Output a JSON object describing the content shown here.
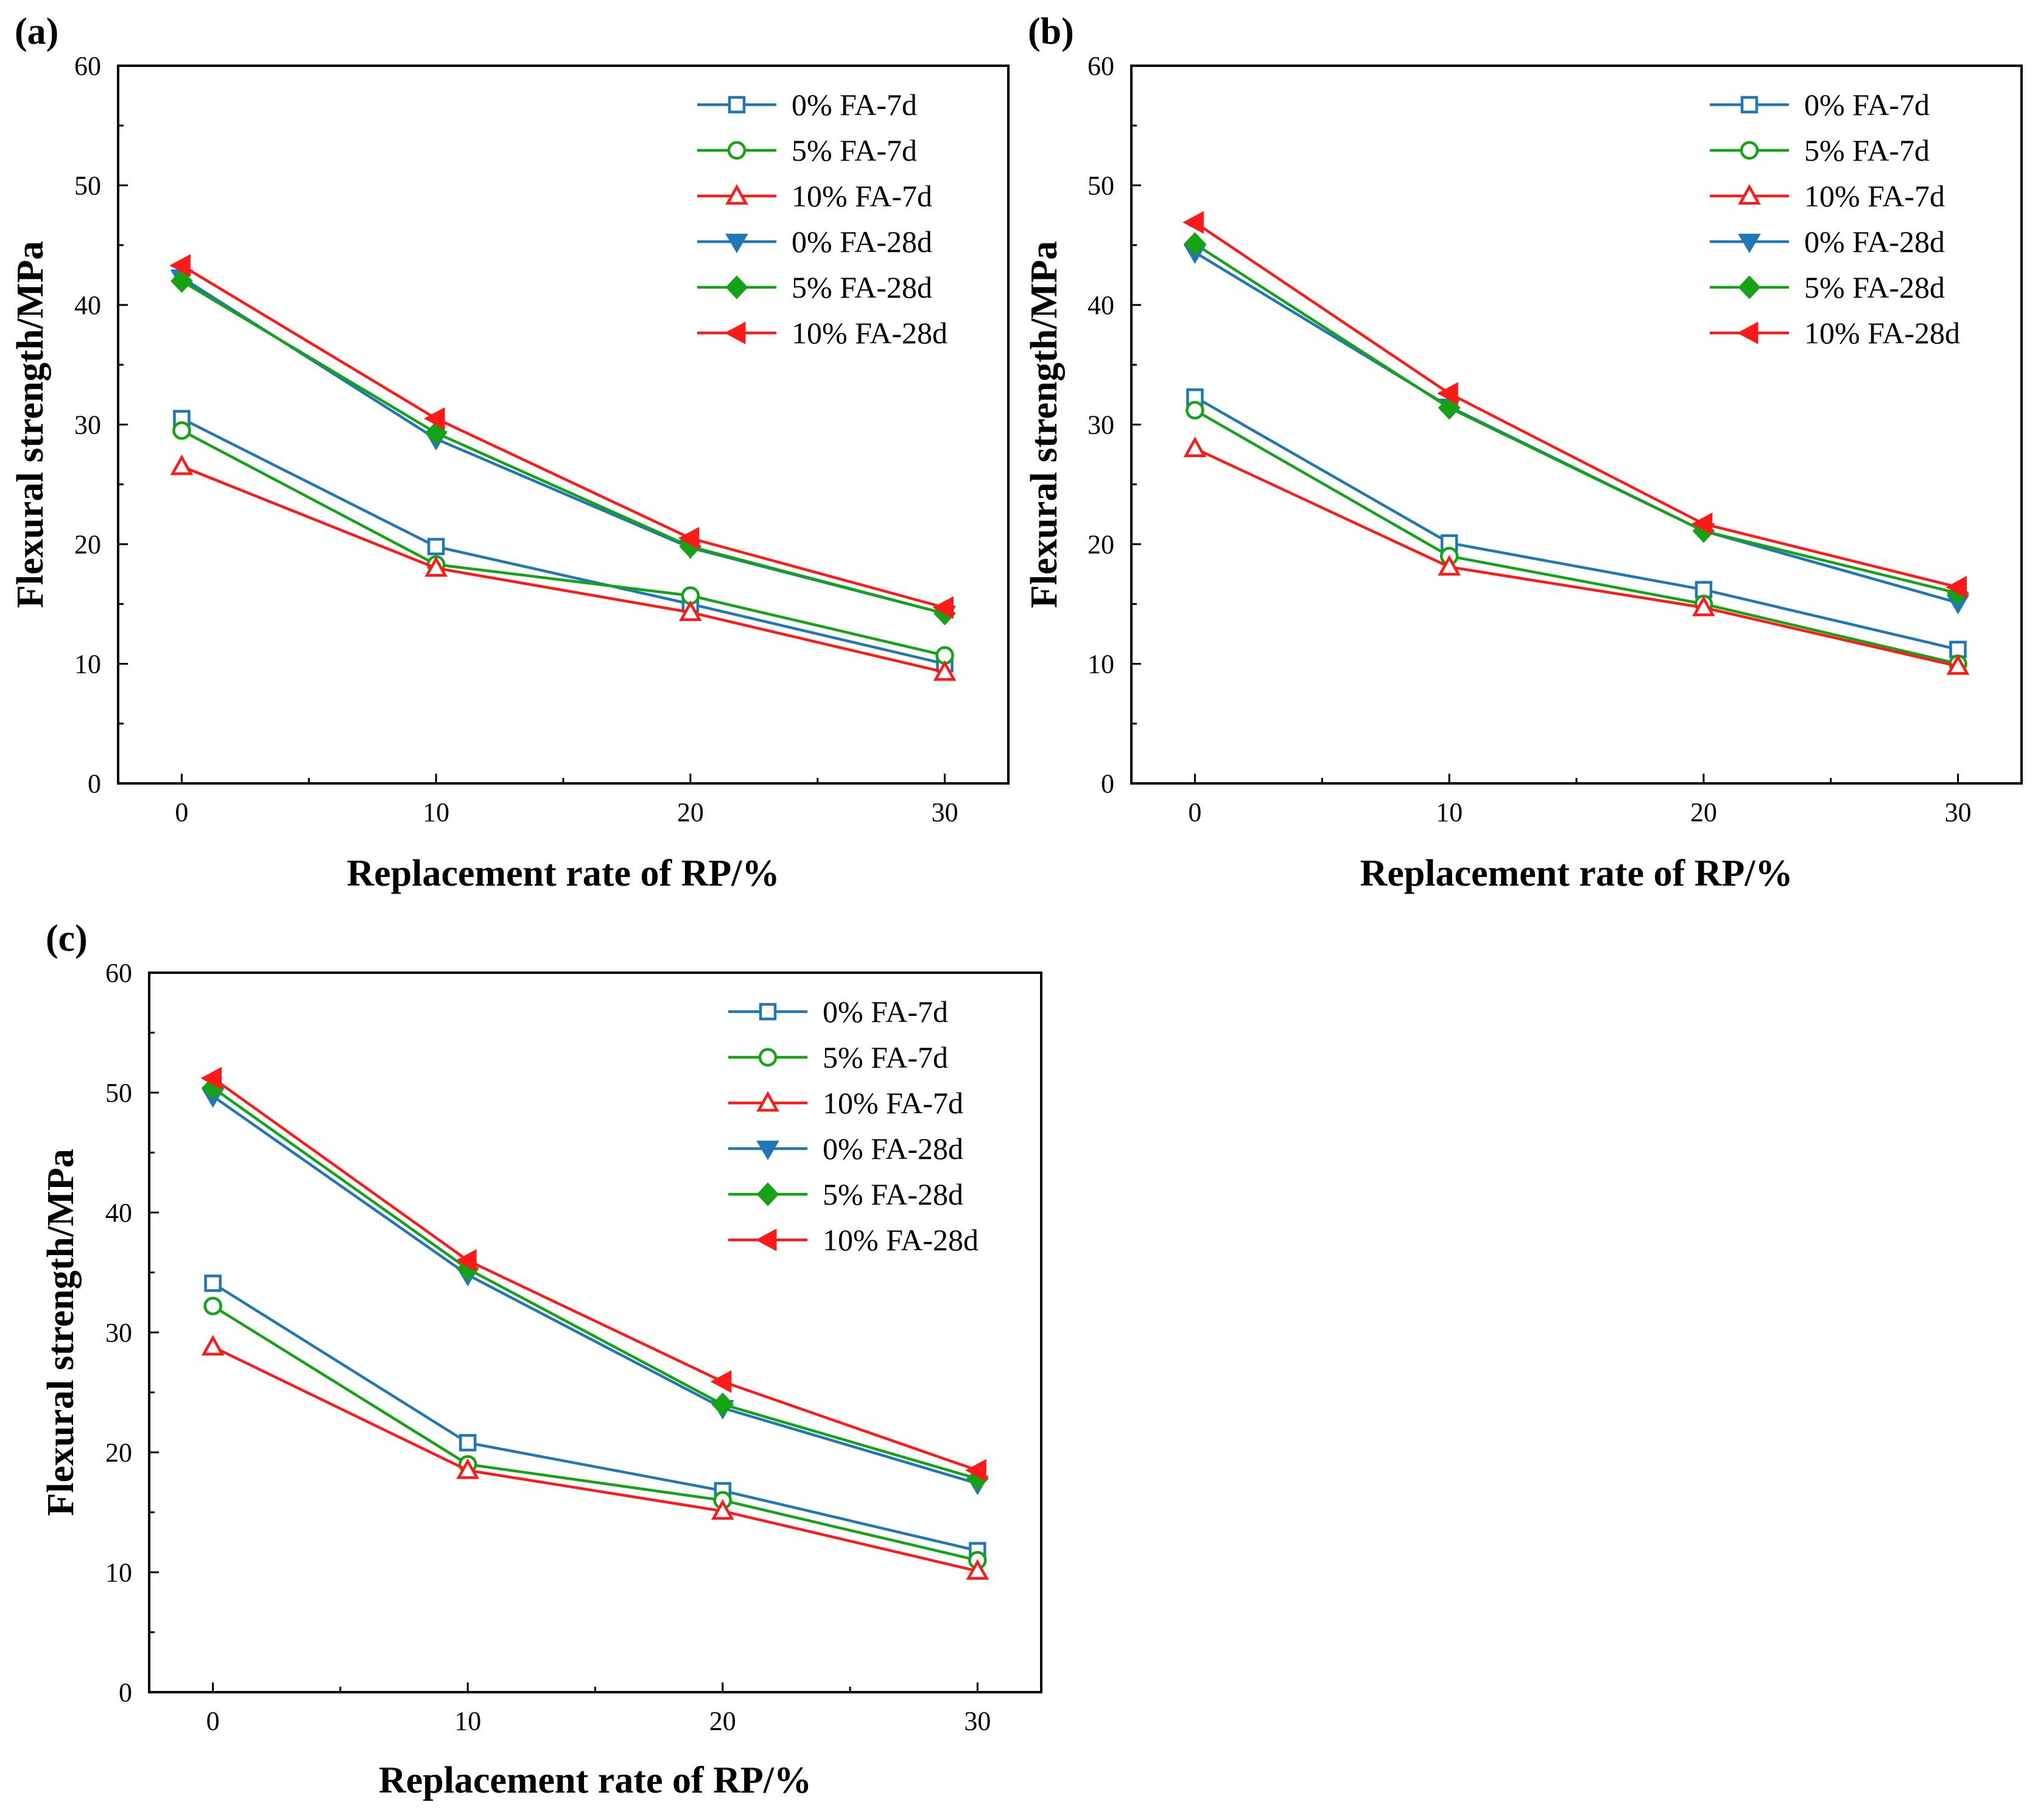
{
  "chart_data": [
    {
      "type": "line",
      "panel_label": "(a)",
      "xlabel": "Replacement rate of RP/%",
      "ylabel": "Flexural strength/MPa",
      "x": [
        0,
        10,
        20,
        30
      ],
      "x_ticks": [
        "0",
        "10",
        "20",
        "30"
      ],
      "y_ticks": [
        "0",
        "10",
        "20",
        "30",
        "40",
        "50",
        "60"
      ],
      "xlim": [
        -2.5,
        32.5
      ],
      "ylim": [
        0,
        60
      ],
      "legend_position": "top-right",
      "series": [
        {
          "name": "0% FA-7d",
          "values": [
            30.5,
            19.8,
            15.0,
            10.0
          ],
          "color": "#1F77B4",
          "marker": "square-open"
        },
        {
          "name": "5% FA-7d",
          "values": [
            29.5,
            18.3,
            15.7,
            10.7
          ],
          "color": "#15A315",
          "marker": "circle-open"
        },
        {
          "name": "10% FA-7d",
          "values": [
            26.5,
            18.0,
            14.3,
            9.3
          ],
          "color": "#FF1A1A",
          "marker": "triangle-up-open"
        },
        {
          "name": "0% FA-28d",
          "values": [
            42.3,
            28.8,
            19.7,
            14.2
          ],
          "color": "#1F77B4",
          "marker": "triangle-down-filled"
        },
        {
          "name": "5% FA-28d",
          "values": [
            42.0,
            29.3,
            19.8,
            14.2
          ],
          "color": "#15A315",
          "marker": "diamond-filled"
        },
        {
          "name": "10% FA-28d",
          "values": [
            43.3,
            30.5,
            20.5,
            14.7
          ],
          "color": "#FF1A1A",
          "marker": "triangle-left-filled"
        }
      ]
    },
    {
      "type": "line",
      "panel_label": "(b)",
      "xlabel": "Replacement rate of RP/%",
      "ylabel": "Flexural strength/MPa",
      "x": [
        0,
        10,
        20,
        30
      ],
      "x_ticks": [
        "0",
        "10",
        "20",
        "30"
      ],
      "y_ticks": [
        "0",
        "10",
        "20",
        "30",
        "40",
        "50",
        "60"
      ],
      "xlim": [
        -2.5,
        32.5
      ],
      "ylim": [
        0,
        60
      ],
      "legend_position": "top-right",
      "series": [
        {
          "name": "0% FA-7d",
          "values": [
            32.3,
            20.1,
            16.2,
            11.2
          ],
          "color": "#1F77B4",
          "marker": "square-open"
        },
        {
          "name": "5% FA-7d",
          "values": [
            31.2,
            19.0,
            15.0,
            10.0
          ],
          "color": "#15A315",
          "marker": "circle-open"
        },
        {
          "name": "10% FA-7d",
          "values": [
            28.0,
            18.1,
            14.7,
            9.8
          ],
          "color": "#FF1A1A",
          "marker": "triangle-up-open"
        },
        {
          "name": "0% FA-28d",
          "values": [
            44.4,
            31.5,
            21.1,
            15.1
          ],
          "color": "#1F77B4",
          "marker": "triangle-down-filled"
        },
        {
          "name": "5% FA-28d",
          "values": [
            45.1,
            31.4,
            21.1,
            15.9
          ],
          "color": "#15A315",
          "marker": "diamond-filled"
        },
        {
          "name": "10% FA-28d",
          "values": [
            46.9,
            32.6,
            21.7,
            16.4
          ],
          "color": "#FF1A1A",
          "marker": "triangle-left-filled"
        }
      ]
    },
    {
      "type": "line",
      "panel_label": "(c)",
      "xlabel": "Replacement rate of RP/%",
      "ylabel": "Flexural strength/MPa",
      "x": [
        0,
        10,
        20,
        30
      ],
      "x_ticks": [
        "0",
        "10",
        "20",
        "30"
      ],
      "y_ticks": [
        "0",
        "10",
        "20",
        "30",
        "40",
        "50",
        "60"
      ],
      "xlim": [
        -2.5,
        32.5
      ],
      "ylim": [
        0,
        60
      ],
      "legend_position": "top-right",
      "series": [
        {
          "name": "0% FA-7d",
          "values": [
            34.1,
            20.8,
            16.8,
            11.8
          ],
          "color": "#1F77B4",
          "marker": "square-open"
        },
        {
          "name": "5% FA-7d",
          "values": [
            32.2,
            19.0,
            16.0,
            11.0
          ],
          "color": "#15A315",
          "marker": "circle-open"
        },
        {
          "name": "10% FA-7d",
          "values": [
            28.8,
            18.5,
            15.1,
            10.1
          ],
          "color": "#FF1A1A",
          "marker": "triangle-up-open"
        },
        {
          "name": "0% FA-28d",
          "values": [
            49.7,
            34.8,
            23.7,
            17.4
          ],
          "color": "#1F77B4",
          "marker": "triangle-down-filled"
        },
        {
          "name": "5% FA-28d",
          "values": [
            50.4,
            35.3,
            24.0,
            17.8
          ],
          "color": "#15A315",
          "marker": "diamond-filled"
        },
        {
          "name": "10% FA-28d",
          "values": [
            51.2,
            36.0,
            25.9,
            18.5
          ],
          "color": "#FF1A1A",
          "marker": "triangle-left-filled"
        }
      ]
    }
  ]
}
